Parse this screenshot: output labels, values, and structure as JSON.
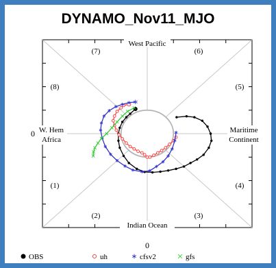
{
  "title": "DYNAMO_Nov11_MJO",
  "chart_data": {
    "type": "line",
    "title": "DYNAMO_Nov11_MJO",
    "xlim": [
      -4,
      4
    ],
    "ylim": [
      -4,
      4
    ],
    "x_tick_label": "0",
    "y_tick_label": "0",
    "unit_circle": true,
    "phase_labels": [
      "(1)",
      "(2)",
      "(3)",
      "(4)",
      "(5)",
      "(6)",
      "(7)",
      "(8)"
    ],
    "region_labels": {
      "top": "West Pacific",
      "bottom": "Indian Ocean",
      "left": [
        "W. Hem",
        "Africa"
      ],
      "right": [
        "Maritime",
        "Continent"
      ]
    },
    "series": [
      {
        "name": "OBS",
        "color": "#000000",
        "marker": "dot",
        "points": [
          [
            1.12,
            0.7
          ],
          [
            1.5,
            0.74
          ],
          [
            1.8,
            0.7
          ],
          [
            2.1,
            0.55
          ],
          [
            2.3,
            0.3
          ],
          [
            2.42,
            0.0
          ],
          [
            2.45,
            -0.3
          ],
          [
            2.35,
            -0.6
          ],
          [
            2.15,
            -0.9
          ],
          [
            1.9,
            -1.1
          ],
          [
            1.65,
            -1.25
          ],
          [
            1.4,
            -1.4
          ],
          [
            1.1,
            -1.5
          ],
          [
            0.8,
            -1.57
          ],
          [
            0.5,
            -1.62
          ],
          [
            0.2,
            -1.65
          ],
          [
            -0.1,
            -1.63
          ],
          [
            -0.4,
            -1.5
          ],
          [
            -0.7,
            -1.25
          ],
          [
            -0.9,
            -0.95
          ],
          [
            -1.05,
            -0.6
          ],
          [
            -1.1,
            -0.3
          ],
          [
            -1.1,
            0.0
          ],
          [
            -1.05,
            0.25
          ],
          [
            -0.95,
            0.5
          ],
          [
            -0.8,
            0.7
          ],
          [
            -0.65,
            0.85
          ],
          [
            -0.45,
            1.05
          ]
        ]
      },
      {
        "name": "uh",
        "color": "#ff4444",
        "marker": "circle",
        "points": [
          [
            1.1,
            -0.15
          ],
          [
            1.0,
            -0.3
          ],
          [
            0.85,
            -0.45
          ],
          [
            0.7,
            -0.6
          ],
          [
            0.55,
            -0.72
          ],
          [
            0.4,
            -0.82
          ],
          [
            0.25,
            -0.92
          ],
          [
            0.1,
            -1.0
          ],
          [
            0.0,
            -1.0
          ],
          [
            -0.1,
            -0.9
          ],
          [
            -0.2,
            -0.82
          ],
          [
            -0.35,
            -0.75
          ],
          [
            -0.5,
            -0.65
          ],
          [
            -0.65,
            -0.55
          ],
          [
            -0.8,
            -0.4
          ],
          [
            -0.95,
            -0.22
          ],
          [
            -1.08,
            -0.05
          ],
          [
            -1.18,
            0.15
          ],
          [
            -1.25,
            0.35
          ],
          [
            -1.3,
            0.55
          ],
          [
            -1.25,
            0.75
          ],
          [
            -1.15,
            0.95
          ],
          [
            -1.0,
            1.1
          ],
          [
            -0.9,
            1.2
          ],
          [
            -0.7,
            1.25
          ]
        ]
      },
      {
        "name": "cfsv2",
        "color": "#3333cc",
        "marker": "star",
        "points": [
          [
            1.1,
            0.05
          ],
          [
            1.05,
            -0.3
          ],
          [
            0.95,
            -0.65
          ],
          [
            0.8,
            -0.95
          ],
          [
            0.6,
            -1.2
          ],
          [
            0.35,
            -1.4
          ],
          [
            0.1,
            -1.58
          ],
          [
            -0.2,
            -1.62
          ],
          [
            -0.55,
            -1.55
          ],
          [
            -0.85,
            -1.38
          ],
          [
            -1.15,
            -1.15
          ],
          [
            -1.4,
            -0.88
          ],
          [
            -1.6,
            -0.55
          ],
          [
            -1.72,
            -0.2
          ],
          [
            -1.78,
            0.15
          ],
          [
            -1.75,
            0.45
          ],
          [
            -1.65,
            0.75
          ],
          [
            -1.45,
            0.98
          ],
          [
            -1.2,
            1.15
          ],
          [
            -0.95,
            1.25
          ],
          [
            -0.7,
            1.32
          ],
          [
            -0.45,
            1.35
          ]
        ]
      },
      {
        "name": "gfs",
        "color": "#33cc33",
        "marker": "cross",
        "points": [
          [
            -0.5,
            1.1
          ],
          [
            -0.75,
            0.95
          ],
          [
            -0.95,
            0.75
          ],
          [
            -1.15,
            0.5
          ],
          [
            -1.35,
            0.25
          ],
          [
            -1.55,
            0.0
          ],
          [
            -1.75,
            -0.2
          ],
          [
            -1.88,
            -0.4
          ],
          [
            -2.0,
            -0.6
          ],
          [
            -2.05,
            -0.78
          ],
          [
            -2.06,
            -0.95
          ]
        ]
      }
    ],
    "legend_position": "bottom"
  }
}
